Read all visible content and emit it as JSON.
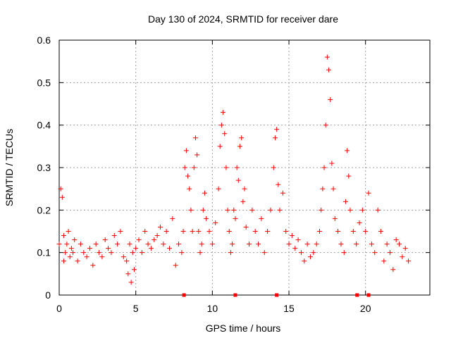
{
  "chart_data": {
    "type": "scatter",
    "title": "Day 130 of 2024, SRMTID for receiver dare",
    "xlabel": "GPS time / hours",
    "ylabel": "SRMTID / TECUs",
    "xlim": [
      0,
      24.2
    ],
    "ylim": [
      0,
      0.6
    ],
    "x_ticks": [
      0,
      5,
      10,
      15,
      20
    ],
    "x_tick_labels": [
      "0",
      "5",
      "10",
      "15",
      "20"
    ],
    "y_ticks": [
      0,
      0.1,
      0.2,
      0.3,
      0.4,
      0.5,
      0.6
    ],
    "y_tick_labels": [
      "0",
      "0.1",
      "0.2",
      "0.3",
      "0.4",
      "0.5",
      "0.6"
    ],
    "grid": true,
    "marker": "+",
    "color": "#ff0000",
    "baseline_markers_x": [
      8.15,
      11.5,
      14.2,
      19.45,
      20.2
    ],
    "series": [
      {
        "name": "SRMTID",
        "x": [
          0.0,
          0.1,
          0.2,
          0.3,
          0.3,
          0.4,
          0.5,
          0.6,
          0.7,
          0.8,
          0.9,
          1.0,
          1.2,
          1.4,
          1.6,
          1.8,
          2.0,
          2.2,
          2.4,
          2.6,
          2.8,
          3.0,
          3.2,
          3.4,
          3.6,
          3.8,
          4.0,
          4.2,
          4.4,
          4.5,
          4.6,
          4.7,
          4.8,
          4.9,
          5.0,
          5.2,
          5.4,
          5.6,
          5.8,
          6.0,
          6.2,
          6.4,
          6.6,
          6.8,
          7.0,
          7.2,
          7.4,
          7.6,
          7.8,
          8.0,
          8.1,
          8.2,
          8.3,
          8.4,
          8.5,
          8.6,
          8.7,
          8.8,
          8.9,
          9.0,
          9.1,
          9.2,
          9.3,
          9.4,
          9.5,
          9.6,
          9.8,
          10.0,
          10.2,
          10.4,
          10.5,
          10.6,
          10.7,
          10.8,
          10.9,
          11.0,
          11.1,
          11.2,
          11.3,
          11.4,
          11.5,
          11.6,
          11.7,
          11.8,
          11.9,
          12.0,
          12.1,
          12.2,
          12.4,
          12.6,
          12.8,
          13.0,
          13.2,
          13.4,
          13.6,
          13.8,
          14.0,
          14.1,
          14.2,
          14.3,
          14.4,
          14.6,
          14.8,
          15.0,
          15.2,
          15.4,
          15.6,
          15.8,
          16.0,
          16.2,
          16.4,
          16.6,
          16.8,
          17.0,
          17.1,
          17.2,
          17.3,
          17.4,
          17.5,
          17.6,
          17.7,
          17.8,
          17.9,
          18.0,
          18.2,
          18.4,
          18.6,
          18.7,
          18.8,
          18.9,
          19.0,
          19.2,
          19.4,
          19.6,
          19.8,
          20.0,
          20.2,
          20.4,
          20.6,
          20.8,
          21.0,
          21.2,
          21.4,
          21.6,
          21.8,
          22.0,
          22.2,
          22.4,
          22.6,
          22.8
        ],
        "y": [
          0.12,
          0.25,
          0.23,
          0.08,
          0.14,
          0.1,
          0.12,
          0.15,
          0.09,
          0.11,
          0.1,
          0.13,
          0.08,
          0.12,
          0.1,
          0.09,
          0.11,
          0.07,
          0.12,
          0.1,
          0.09,
          0.13,
          0.11,
          0.1,
          0.14,
          0.12,
          0.15,
          0.09,
          0.08,
          0.05,
          0.12,
          0.03,
          0.1,
          0.06,
          0.11,
          0.13,
          0.1,
          0.15,
          0.12,
          0.11,
          0.13,
          0.14,
          0.16,
          0.12,
          0.15,
          0.11,
          0.18,
          0.07,
          0.12,
          0.1,
          0.15,
          0.3,
          0.34,
          0.28,
          0.25,
          0.2,
          0.15,
          0.3,
          0.37,
          0.33,
          0.15,
          0.1,
          0.12,
          0.2,
          0.24,
          0.18,
          0.15,
          0.12,
          0.17,
          0.25,
          0.35,
          0.4,
          0.43,
          0.38,
          0.3,
          0.2,
          0.15,
          0.1,
          0.12,
          0.2,
          0.18,
          0.3,
          0.27,
          0.35,
          0.37,
          0.22,
          0.25,
          0.16,
          0.12,
          0.2,
          0.15,
          0.12,
          0.18,
          0.1,
          0.15,
          0.2,
          0.3,
          0.37,
          0.39,
          0.26,
          0.2,
          0.24,
          0.15,
          0.12,
          0.14,
          0.11,
          0.13,
          0.1,
          0.08,
          0.12,
          0.09,
          0.1,
          0.12,
          0.15,
          0.2,
          0.25,
          0.3,
          0.4,
          0.56,
          0.53,
          0.46,
          0.31,
          0.25,
          0.18,
          0.15,
          0.12,
          0.1,
          0.22,
          0.34,
          0.28,
          0.2,
          0.15,
          0.12,
          0.17,
          0.2,
          0.15,
          0.24,
          0.12,
          0.1,
          0.2,
          0.15,
          0.08,
          0.12,
          0.1,
          0.06,
          0.13,
          0.12,
          0.09,
          0.11,
          0.08
        ]
      }
    ]
  }
}
